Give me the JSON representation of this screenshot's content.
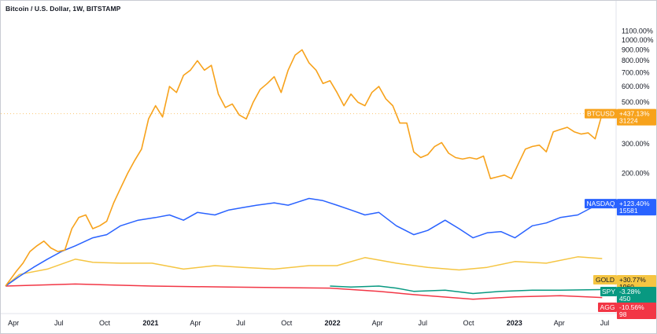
{
  "chart_data": {
    "type": "line",
    "title": "Bitcoin / U.S. Dollar, 1W, BITSTAMP",
    "y_axis": {
      "scale": "log",
      "unit": "percent change",
      "ticks": [
        "1100.00%",
        "1000.00%",
        "900.00%",
        "800.00%",
        "700.00%",
        "600.00%",
        "500.00%",
        "300.00%",
        "200.00%"
      ],
      "tick_values": [
        1100,
        1000,
        900,
        800,
        700,
        600,
        500,
        300,
        200
      ]
    },
    "x_axis": {
      "ticks": [
        {
          "label": "Apr",
          "date": "2020-04-01",
          "bold": false
        },
        {
          "label": "Jul",
          "date": "2020-07-01",
          "bold": false
        },
        {
          "label": "Oct",
          "date": "2020-10-01",
          "bold": false
        },
        {
          "label": "2021",
          "date": "2021-01-01",
          "bold": true
        },
        {
          "label": "Apr",
          "date": "2021-04-01",
          "bold": false
        },
        {
          "label": "Jul",
          "date": "2021-07-01",
          "bold": false
        },
        {
          "label": "Oct",
          "date": "2021-10-01",
          "bold": false
        },
        {
          "label": "2022",
          "date": "2022-01-01",
          "bold": true
        },
        {
          "label": "Apr",
          "date": "2022-04-01",
          "bold": false
        },
        {
          "label": "Jul",
          "date": "2022-07-01",
          "bold": false
        },
        {
          "label": "Oct",
          "date": "2022-10-01",
          "bold": false
        },
        {
          "label": "2023",
          "date": "2023-01-01",
          "bold": true
        },
        {
          "label": "Apr",
          "date": "2023-04-01",
          "bold": false
        },
        {
          "label": "Jul",
          "date": "2023-07-01",
          "bold": false
        }
      ]
    },
    "series": [
      {
        "name": "BTCUSD",
        "color": "#f7a21b",
        "last_change": "+437.13%",
        "last_price": "31224",
        "points": [
          [
            "2020-03-16",
            0
          ],
          [
            "2020-04-06",
            15
          ],
          [
            "2020-04-20",
            25
          ],
          [
            "2020-05-04",
            40
          ],
          [
            "2020-05-18",
            48
          ],
          [
            "2020-06-01",
            55
          ],
          [
            "2020-06-15",
            45
          ],
          [
            "2020-06-29",
            40
          ],
          [
            "2020-07-13",
            42
          ],
          [
            "2020-07-27",
            75
          ],
          [
            "2020-08-10",
            95
          ],
          [
            "2020-08-24",
            100
          ],
          [
            "2020-09-07",
            75
          ],
          [
            "2020-09-21",
            80
          ],
          [
            "2020-10-05",
            88
          ],
          [
            "2020-10-19",
            125
          ],
          [
            "2020-11-02",
            160
          ],
          [
            "2020-11-16",
            200
          ],
          [
            "2020-11-30",
            240
          ],
          [
            "2020-12-14",
            280
          ],
          [
            "2020-12-28",
            410
          ],
          [
            "2021-01-11",
            480
          ],
          [
            "2021-01-25",
            420
          ],
          [
            "2021-02-08",
            600
          ],
          [
            "2021-02-22",
            560
          ],
          [
            "2021-03-08",
            680
          ],
          [
            "2021-03-22",
            720
          ],
          [
            "2021-04-05",
            800
          ],
          [
            "2021-04-19",
            720
          ],
          [
            "2021-05-03",
            760
          ],
          [
            "2021-05-17",
            550
          ],
          [
            "2021-05-31",
            470
          ],
          [
            "2021-06-14",
            490
          ],
          [
            "2021-06-28",
            430
          ],
          [
            "2021-07-12",
            410
          ],
          [
            "2021-07-26",
            500
          ],
          [
            "2021-08-09",
            580
          ],
          [
            "2021-08-23",
            620
          ],
          [
            "2021-09-06",
            670
          ],
          [
            "2021-09-20",
            560
          ],
          [
            "2021-10-04",
            720
          ],
          [
            "2021-10-18",
            850
          ],
          [
            "2021-11-01",
            900
          ],
          [
            "2021-11-15",
            780
          ],
          [
            "2021-11-29",
            720
          ],
          [
            "2021-12-13",
            620
          ],
          [
            "2021-12-27",
            640
          ],
          [
            "2022-01-10",
            560
          ],
          [
            "2022-01-24",
            480
          ],
          [
            "2022-02-07",
            550
          ],
          [
            "2022-02-21",
            500
          ],
          [
            "2022-03-07",
            480
          ],
          [
            "2022-03-21",
            560
          ],
          [
            "2022-04-04",
            600
          ],
          [
            "2022-04-18",
            520
          ],
          [
            "2022-05-02",
            480
          ],
          [
            "2022-05-16",
            390
          ],
          [
            "2022-05-30",
            390
          ],
          [
            "2022-06-13",
            270
          ],
          [
            "2022-06-27",
            250
          ],
          [
            "2022-07-11",
            260
          ],
          [
            "2022-07-25",
            290
          ],
          [
            "2022-08-08",
            305
          ],
          [
            "2022-08-22",
            265
          ],
          [
            "2022-09-05",
            250
          ],
          [
            "2022-09-19",
            245
          ],
          [
            "2022-10-03",
            250
          ],
          [
            "2022-10-17",
            245
          ],
          [
            "2022-10-31",
            255
          ],
          [
            "2022-11-14",
            185
          ],
          [
            "2022-11-28",
            190
          ],
          [
            "2022-12-12",
            195
          ],
          [
            "2022-12-26",
            185
          ],
          [
            "2023-01-09",
            230
          ],
          [
            "2023-01-23",
            280
          ],
          [
            "2023-02-06",
            290
          ],
          [
            "2023-02-20",
            295
          ],
          [
            "2023-03-06",
            270
          ],
          [
            "2023-03-20",
            350
          ],
          [
            "2023-04-03",
            360
          ],
          [
            "2023-04-17",
            370
          ],
          [
            "2023-05-01",
            350
          ],
          [
            "2023-05-15",
            340
          ],
          [
            "2023-05-29",
            345
          ],
          [
            "2023-06-12",
            320
          ],
          [
            "2023-06-26",
            437.13
          ]
        ]
      },
      {
        "name": "NASDAQ",
        "color": "#2962ff",
        "last_change": "+123.40%",
        "last_price": "15581",
        "points": [
          [
            "2020-03-16",
            0
          ],
          [
            "2020-04-13",
            10
          ],
          [
            "2020-05-11",
            20
          ],
          [
            "2020-06-08",
            30
          ],
          [
            "2020-07-06",
            40
          ],
          [
            "2020-08-03",
            48
          ],
          [
            "2020-09-07",
            60
          ],
          [
            "2020-10-05",
            65
          ],
          [
            "2020-11-02",
            80
          ],
          [
            "2020-12-07",
            90
          ],
          [
            "2021-01-11",
            95
          ],
          [
            "2021-02-08",
            100
          ],
          [
            "2021-03-08",
            90
          ],
          [
            "2021-04-05",
            105
          ],
          [
            "2021-05-10",
            100
          ],
          [
            "2021-06-07",
            110
          ],
          [
            "2021-07-05",
            115
          ],
          [
            "2021-08-02",
            120
          ],
          [
            "2021-09-06",
            125
          ],
          [
            "2021-10-04",
            120
          ],
          [
            "2021-11-15",
            135
          ],
          [
            "2021-12-13",
            130
          ],
          [
            "2022-01-10",
            120
          ],
          [
            "2022-02-07",
            110
          ],
          [
            "2022-03-07",
            100
          ],
          [
            "2022-04-04",
            105
          ],
          [
            "2022-05-09",
            80
          ],
          [
            "2022-06-13",
            65
          ],
          [
            "2022-07-11",
            72
          ],
          [
            "2022-08-15",
            90
          ],
          [
            "2022-09-12",
            75
          ],
          [
            "2022-10-10",
            60
          ],
          [
            "2022-11-07",
            68
          ],
          [
            "2022-12-05",
            70
          ],
          [
            "2023-01-02",
            60
          ],
          [
            "2023-02-06",
            80
          ],
          [
            "2023-03-06",
            85
          ],
          [
            "2023-04-03",
            95
          ],
          [
            "2023-05-08",
            100
          ],
          [
            "2023-06-05",
            115
          ],
          [
            "2023-06-26",
            123.4
          ]
        ]
      },
      {
        "name": "GOLD",
        "color": "#f5c542",
        "last_change": "+30.77%",
        "last_price": "1960",
        "points": [
          [
            "2020-03-16",
            0
          ],
          [
            "2020-04-13",
            12
          ],
          [
            "2020-06-08",
            18
          ],
          [
            "2020-08-03",
            30
          ],
          [
            "2020-09-07",
            26
          ],
          [
            "2020-11-02",
            25
          ],
          [
            "2021-01-04",
            25
          ],
          [
            "2021-03-08",
            18
          ],
          [
            "2021-05-10",
            22
          ],
          [
            "2021-07-05",
            20
          ],
          [
            "2021-09-06",
            18
          ],
          [
            "2021-11-15",
            22
          ],
          [
            "2022-01-10",
            22
          ],
          [
            "2022-03-07",
            32
          ],
          [
            "2022-05-09",
            25
          ],
          [
            "2022-07-11",
            20
          ],
          [
            "2022-09-12",
            17
          ],
          [
            "2022-11-07",
            20
          ],
          [
            "2023-01-02",
            27
          ],
          [
            "2023-03-06",
            25
          ],
          [
            "2023-05-08",
            33
          ],
          [
            "2023-06-26",
            30.77
          ]
        ]
      },
      {
        "name": "SPY",
        "color": "#089981",
        "last_change": "-3.28%",
        "last_price": "450",
        "points": [
          [
            "2021-12-27",
            0
          ],
          [
            "2022-02-07",
            -1
          ],
          [
            "2022-04-04",
            0
          ],
          [
            "2022-05-09",
            -2
          ],
          [
            "2022-06-13",
            -5
          ],
          [
            "2022-08-15",
            -4
          ],
          [
            "2022-10-10",
            -7
          ],
          [
            "2022-12-05",
            -5
          ],
          [
            "2023-02-06",
            -4
          ],
          [
            "2023-04-03",
            -4
          ],
          [
            "2023-06-26",
            -3.28
          ]
        ]
      },
      {
        "name": "AGG",
        "color": "#f23645",
        "last_change": "-10.56%",
        "last_price": "98",
        "points": [
          [
            "2020-03-16",
            0
          ],
          [
            "2020-08-03",
            2
          ],
          [
            "2021-01-04",
            0
          ],
          [
            "2021-06-07",
            -1
          ],
          [
            "2021-12-27",
            -2
          ],
          [
            "2022-04-04",
            -5
          ],
          [
            "2022-06-13",
            -8
          ],
          [
            "2022-10-10",
            -12
          ],
          [
            "2023-01-02",
            -10
          ],
          [
            "2023-04-03",
            -9
          ],
          [
            "2023-06-26",
            -10.56
          ]
        ]
      }
    ]
  }
}
